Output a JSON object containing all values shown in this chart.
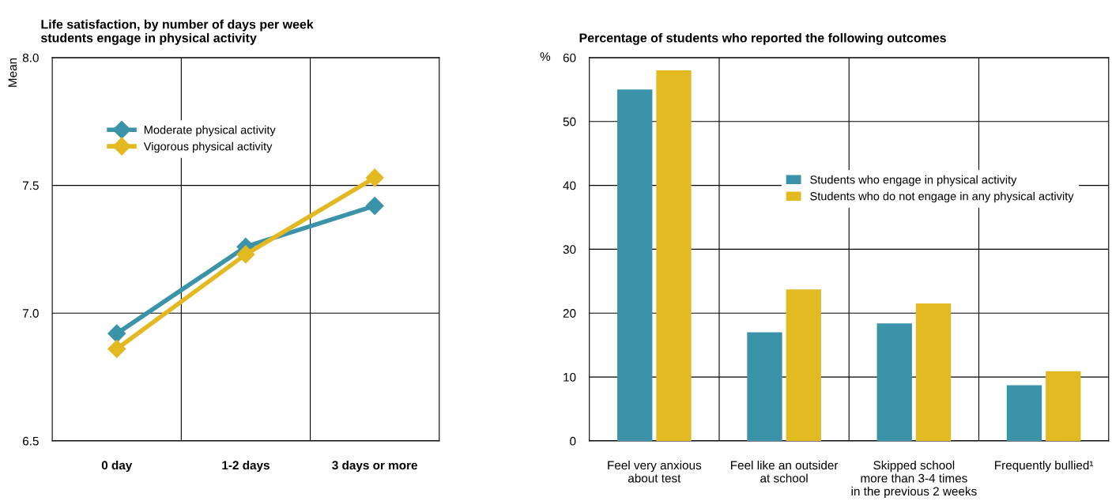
{
  "chart_data": [
    {
      "type": "line",
      "title": "Life satisfaction, by number of days per week\nstudents engage in physical activity",
      "ylabel": "Mean",
      "categories": [
        "0 day",
        "1-2 days",
        "3 days or more"
      ],
      "series": [
        {
          "name": "Moderate physical activity",
          "color": "#3a93a8",
          "values": [
            6.92,
            7.26,
            7.42
          ]
        },
        {
          "name": "Vigorous physical activity",
          "color": "#e3b921",
          "values": [
            6.86,
            7.23,
            7.53
          ]
        }
      ],
      "ylim": [
        6.5,
        8.0
      ],
      "yticks": [
        6.5,
        {
          "value": 7.0,
          "label": "7.0"
        },
        7.5,
        {
          "value": 8.0,
          "label": "8.0"
        }
      ],
      "grid": true,
      "legend": "top left",
      "marker": "diamond",
      "line_style": "solid"
    },
    {
      "type": "bar",
      "title": "Percentage of students who reported the following outcomes",
      "ylabel": "%",
      "categories": [
        "Feel very anxious\nabout test",
        "Feel like an outsider\nat school",
        "Skipped school\nmore than 3-4 times\nin the previous 2 weeks",
        "Frequently bullied¹"
      ],
      "series": [
        {
          "name": "Students who engage in physical activity",
          "color": "#3a93a8",
          "values": [
            55,
            17,
            18.4,
            8.7
          ]
        },
        {
          "name": "Students who do not engage in any physical activity",
          "color": "#e3b921",
          "values": [
            58,
            23.7,
            21.5,
            10.9
          ]
        }
      ],
      "ylim": [
        0,
        60
      ],
      "yticks": [
        0,
        10,
        20,
        30,
        40,
        50,
        60
      ],
      "grid": true,
      "legend": "right"
    }
  ]
}
